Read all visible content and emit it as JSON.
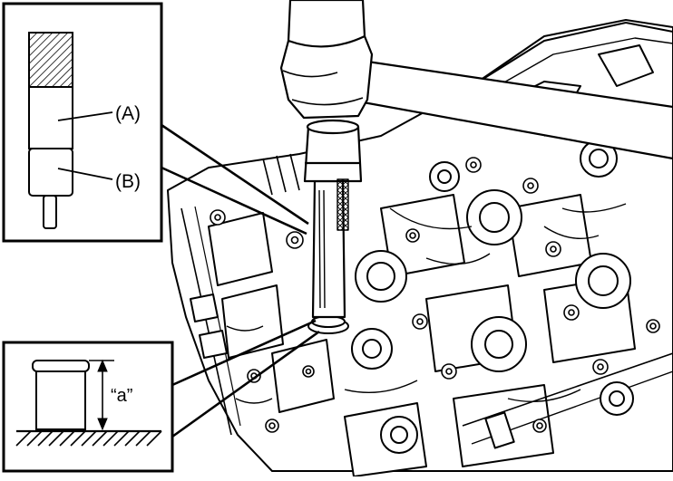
{
  "figure": {
    "inset_top": {
      "label_a": "(A)",
      "label_b": "(B)"
    },
    "inset_bottom": {
      "dimension_label": "“a”"
    },
    "icons": {
      "tool": "valve-guide-installer-icon",
      "hammer": "hammer-icon",
      "engine": "cylinder-head-icon",
      "guide": "valve-guide-icon",
      "ground": "ground-hatch-icon"
    },
    "colors": {
      "line": "#000000",
      "background": "#ffffff"
    }
  }
}
